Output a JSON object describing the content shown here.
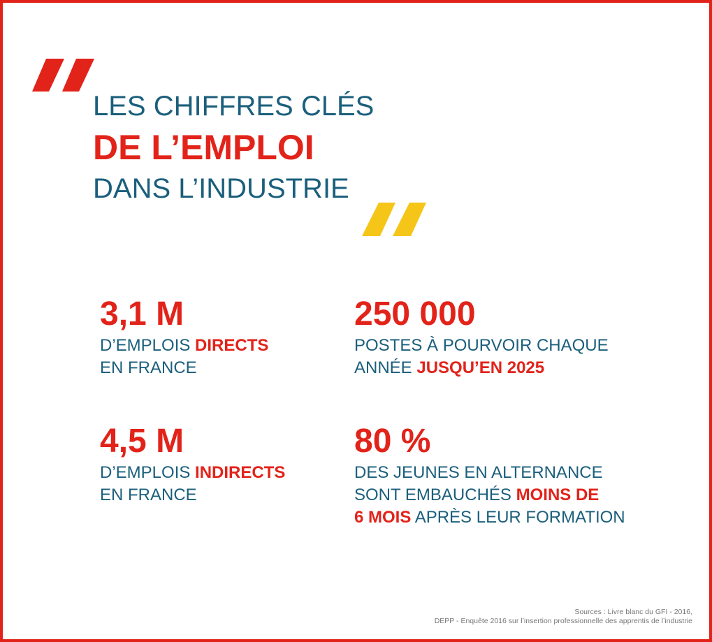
{
  "header": {
    "line1": "LES CHIFFRES CLÉS",
    "line2": "DE L’EMPLOI",
    "line3": "DANS L’INDUSTRIE"
  },
  "stats": [
    {
      "value": "3,1 M",
      "lines": [
        [
          {
            "text": "D’EMPLOIS ",
            "highlight": false
          },
          {
            "text": "DIRECTS",
            "highlight": true
          }
        ],
        [
          {
            "text": "EN FRANCE",
            "highlight": false
          }
        ]
      ]
    },
    {
      "value": "250 000",
      "lines": [
        [
          {
            "text": "POSTES À POURVOIR CHAQUE",
            "highlight": false
          }
        ],
        [
          {
            "text": "ANNÉE ",
            "highlight": false
          },
          {
            "text": "JUSQU’EN 2025",
            "highlight": true
          }
        ]
      ]
    },
    {
      "value": "4,5 M",
      "lines": [
        [
          {
            "text": "D’EMPLOIS ",
            "highlight": false
          },
          {
            "text": "INDIRECTS",
            "highlight": true
          }
        ],
        [
          {
            "text": "EN FRANCE",
            "highlight": false
          }
        ]
      ]
    },
    {
      "value": "80 %",
      "lines": [
        [
          {
            "text": "DES JEUNES EN ALTERNANCE",
            "highlight": false
          }
        ],
        [
          {
            "text": "SONT EMBAUCHÉS ",
            "highlight": false
          },
          {
            "text": "MOINS DE",
            "highlight": true
          }
        ],
        [
          {
            "text": "6 MOIS",
            "highlight": true
          },
          {
            "text": " APRÈS LEUR FORMATION",
            "highlight": false
          }
        ]
      ]
    }
  ],
  "sources": [
    "Sources : Livre blanc du GFI - 2016,",
    "DEPP - Enquête 2016 sur l’insertion professionnelle des apprentis de l’industrie"
  ]
}
